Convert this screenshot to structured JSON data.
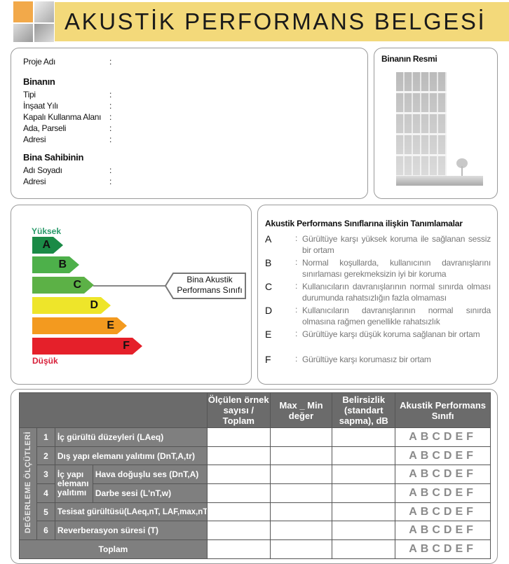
{
  "header": {
    "title": "AKUSTİK PERFORMANS BELGESİ",
    "banner_color": "#f3d97a"
  },
  "info": {
    "proje_adi": "Proje Adı",
    "binanin": "Binanın",
    "fields": [
      "Tipi",
      "İnşaat Yılı",
      "Kapalı Kullanma Alanı",
      "Ada, Parseli",
      "Adresi"
    ],
    "bina_sahibinin": "Bina Sahibinin",
    "owner_fields": [
      "Adı Soyadı",
      "Adresi"
    ],
    "colon": ":"
  },
  "picture": {
    "title": "Binanın Resmi"
  },
  "scale": {
    "high": "Yüksek",
    "low": "Düşük",
    "classes": [
      {
        "l": "A",
        "color": "#1a8a46"
      },
      {
        "l": "B",
        "color": "#4db04a"
      },
      {
        "l": "C",
        "color": "#5cb146"
      },
      {
        "l": "D",
        "color": "#eee52a"
      },
      {
        "l": "E",
        "color": "#f39a1f"
      },
      {
        "l": "F",
        "color": "#e5202a"
      }
    ],
    "callout_line1": "Bina Akustik",
    "callout_line2": "Performans Sınıfı"
  },
  "definitions": {
    "title": "Akustik Performans Sınıflarına ilişkin Tanımlamalar",
    "items": [
      {
        "l": "A",
        "t": "Gürültüye karşı yüksek koruma ile sağlanan sessiz bir ortam"
      },
      {
        "l": "B",
        "t": "Normal koşullarda, kullanıcının davranışlarını sınırlaması gerekmeksizin iyi bir koruma"
      },
      {
        "l": "C",
        "t": "Kullanıcıların davranışlarının normal sınırda olması durumunda rahatsızlığın fazla olmaması"
      },
      {
        "l": "D",
        "t": "Kullanıcıların davranışlarının normal sınırda olmasına rağmen genellikle rahatsızlık"
      },
      {
        "l": "E",
        "t": "Gürültüye karşı düşük koruma sağlanan bir ortam"
      },
      {
        "l": "F",
        "t": "Gürültüye karşı korumasız bir ortam"
      }
    ]
  },
  "table": {
    "headers": [
      "Ölçülen örnek sayısı / Toplam",
      "Max _ Min değer",
      "Belirsizlik (standart sapma), dB",
      "Akustik Performans Sınıfı"
    ],
    "side_label": "DEĞERLEME ÖLÇÜTLERİ",
    "rows": [
      {
        "n": "1",
        "label": "İç gürültü düzeyleri (LAeq)"
      },
      {
        "n": "2",
        "label": "Dış yapı elemanı yalıtımı (DnT,A,tr)"
      },
      {
        "n": "3",
        "label": "Hava doğuşlu ses (DnT,A)"
      },
      {
        "n": "4",
        "label": "Darbe sesi (L'nT,w)"
      },
      {
        "n": "5",
        "label": "Tesisat gürültüsü(LAeq,nT, LAF,max,nT)"
      },
      {
        "n": "6",
        "label": "Reverberasyon süresi (T)"
      }
    ],
    "group_label": "İç yapı elemanı yalıtımı",
    "total": "Toplam",
    "class_letters": "ABCDEF"
  }
}
